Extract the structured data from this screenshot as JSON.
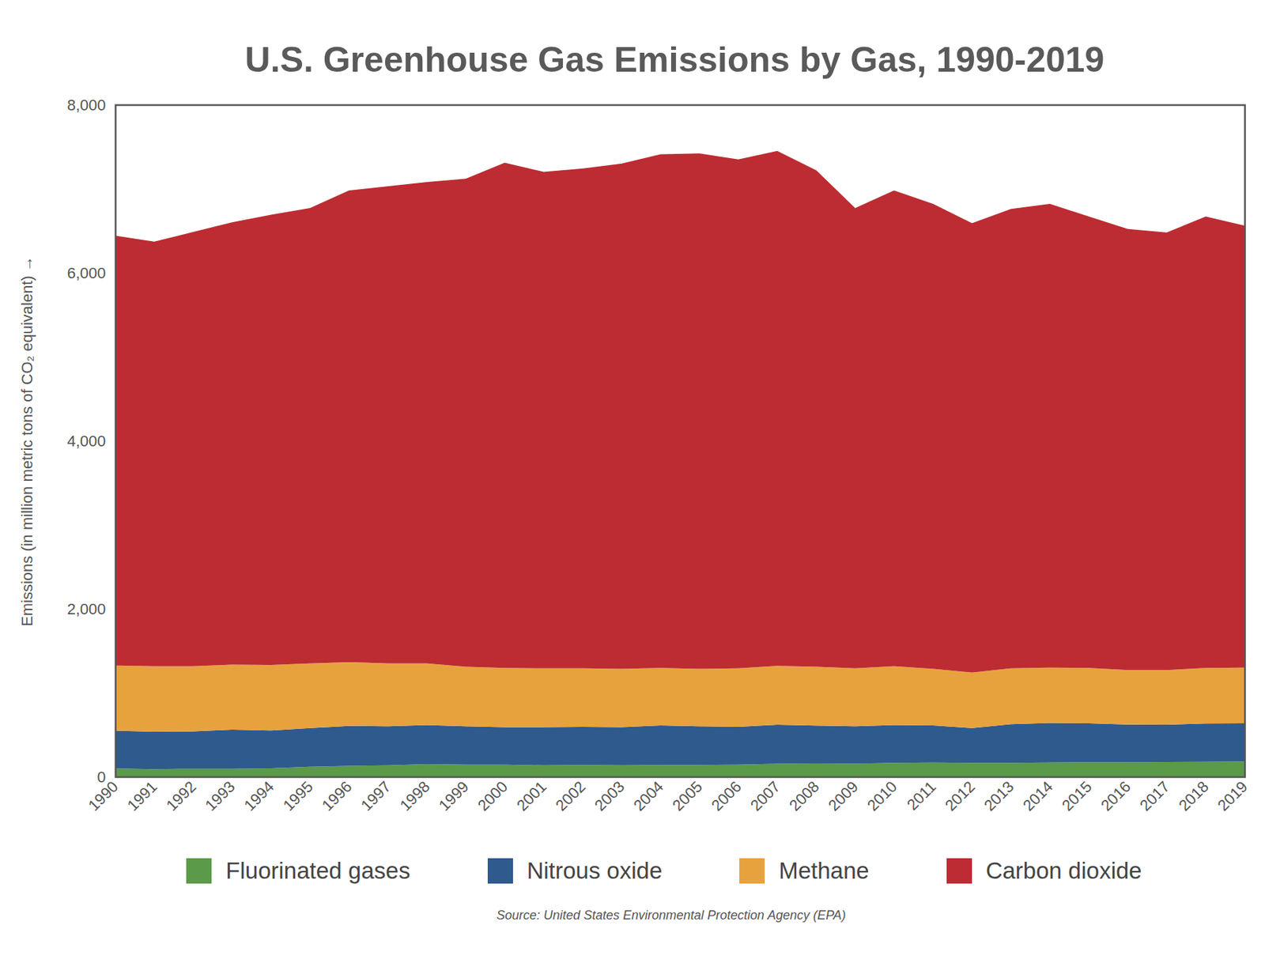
{
  "chart_data": {
    "type": "area",
    "stacked": true,
    "grid": false,
    "title": "U.S. Greenhouse Gas Emissions by Gas, 1990-2019",
    "y_label": "Emissions (in million metric tons of CO₂ equivalent)",
    "caption": "Source: United States Environmental Protection Agency (EPA)",
    "categories": [
      "1990",
      "1991",
      "1992",
      "1993",
      "1994",
      "1995",
      "1996",
      "1997",
      "1998",
      "1999",
      "2000",
      "2001",
      "2002",
      "2003",
      "2004",
      "2005",
      "2006",
      "2007",
      "2008",
      "2009",
      "2010",
      "2011",
      "2012",
      "2013",
      "2014",
      "2015",
      "2016",
      "2017",
      "2018",
      "2019"
    ],
    "ylim": [
      0,
      8000
    ],
    "yticks": [
      0,
      {
        "value": 2000,
        "label": "2,000"
      },
      {
        "value": 4000,
        "label": "4,000"
      },
      {
        "value": 6000,
        "label": "6,000"
      },
      {
        "value": 8000,
        "label": "8,000"
      }
    ],
    "legend": "bottom",
    "series": [
      {
        "name": "Fluorinated gases",
        "color": "#5b9a48",
        "values": [
          99,
          90,
          95,
          95,
          100,
          120,
          130,
          135,
          150,
          145,
          145,
          135,
          140,
          135,
          140,
          140,
          145,
          155,
          158,
          155,
          165,
          170,
          165,
          165,
          170,
          172,
          172,
          175,
          178,
          182
        ]
      },
      {
        "name": "Nitrous oxide",
        "color": "#2e5a8e",
        "values": [
          450,
          445,
          445,
          465,
          450,
          460,
          475,
          465,
          465,
          455,
          445,
          455,
          455,
          455,
          470,
          460,
          450,
          465,
          450,
          445,
          450,
          440,
          415,
          460,
          470,
          465,
          450,
          445,
          455,
          455
        ]
      },
      {
        "name": "Methane",
        "color": "#e8a23d",
        "values": [
          776,
          780,
          775,
          775,
          780,
          770,
          760,
          750,
          735,
          710,
          705,
          700,
          695,
          695,
          685,
          685,
          695,
          700,
          702,
          690,
          700,
          675,
          660,
          665,
          660,
          658,
          648,
          650,
          662,
          663
        ]
      },
      {
        "name": "Carbon dioxide",
        "color": "#bc2c32",
        "values": [
          5117,
          5055,
          5170,
          5265,
          5360,
          5420,
          5615,
          5680,
          5730,
          5810,
          6015,
          5910,
          5950,
          6015,
          6115,
          6135,
          6060,
          6130,
          5910,
          5480,
          5665,
          5535,
          5350,
          5470,
          5520,
          5375,
          5250,
          5210,
          5375,
          5260
        ]
      }
    ]
  }
}
